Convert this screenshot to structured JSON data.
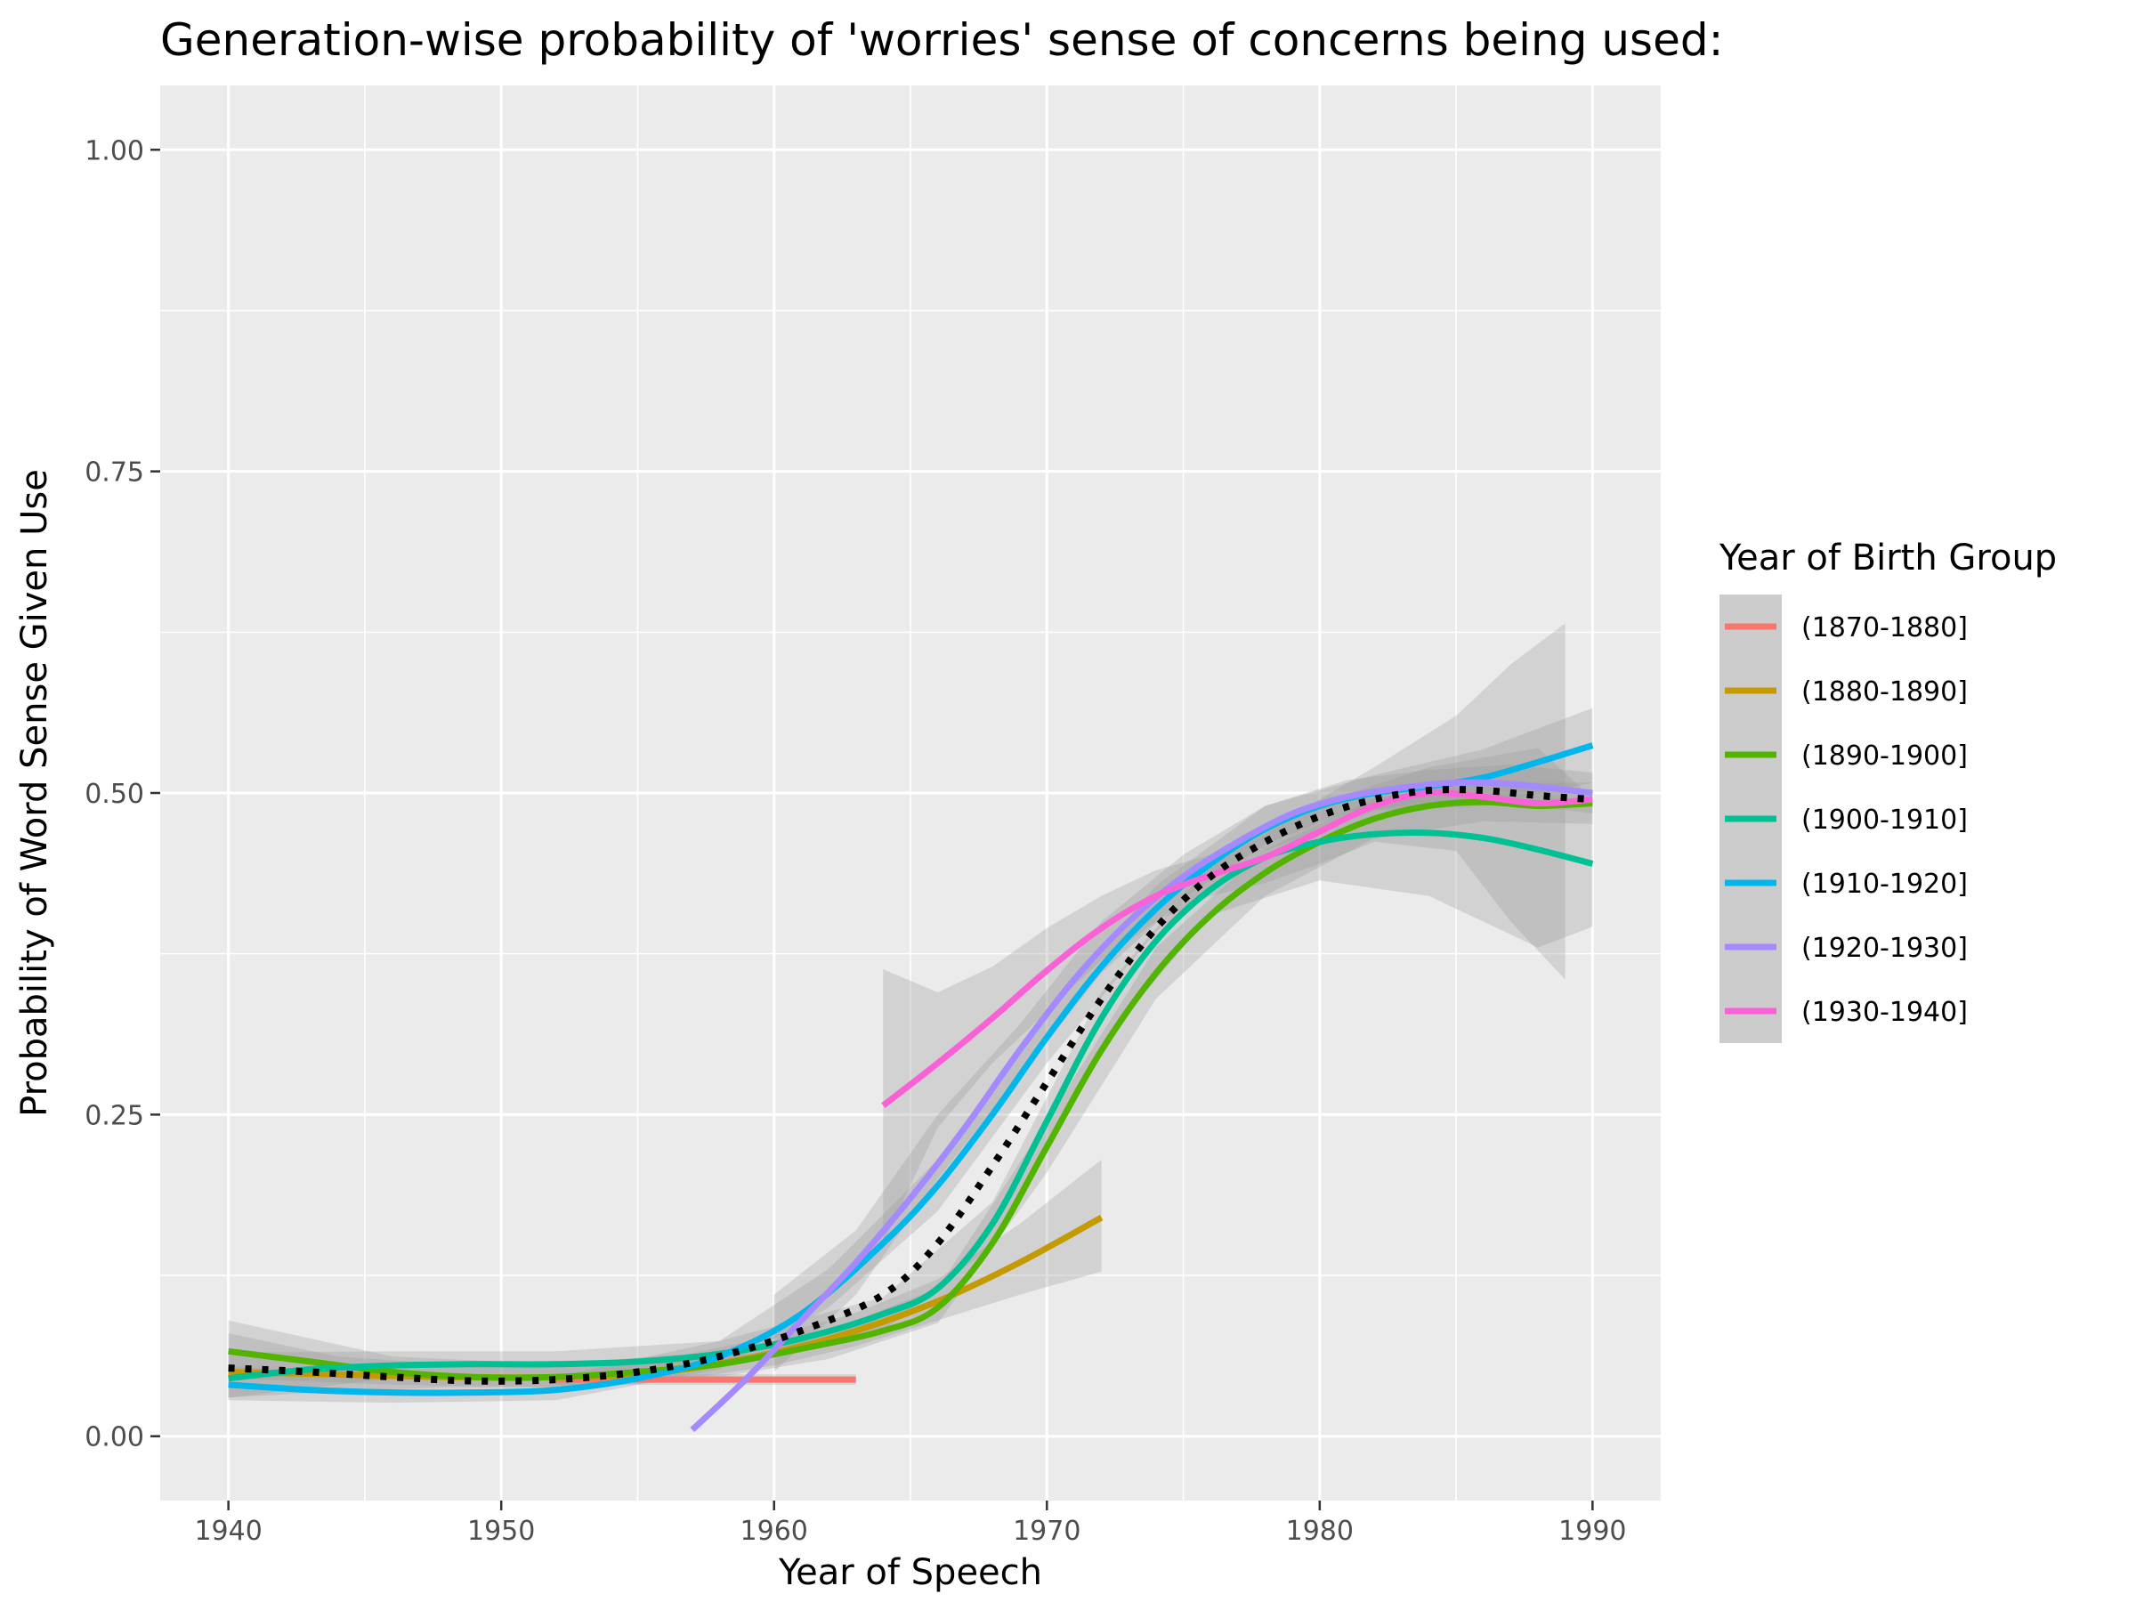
{
  "chart_data": {
    "type": "line",
    "title": "Generation-wise probability of 'worries' sense of concerns being used:",
    "xlabel": "Year of Speech",
    "ylabel": "Probability of Word Sense Given Use",
    "xlim": [
      1937.5,
      1992.5
    ],
    "ylim": [
      -0.05,
      1.05
    ],
    "x_ticks": [
      1940,
      1950,
      1960,
      1970,
      1980,
      1990
    ],
    "x_tick_labels": [
      "1940",
      "1950",
      "1960",
      "1970",
      "1980",
      "1990"
    ],
    "y_ticks": [
      0,
      0.25,
      0.5,
      0.75,
      1.0
    ],
    "y_tick_labels": [
      "0.00",
      "0.25",
      "0.50",
      "0.75",
      "1.00"
    ],
    "grid": true,
    "legend": {
      "title": "Year of Birth Group",
      "position": "right"
    },
    "series": [
      {
        "name": "(1870-1880]",
        "color": "#F8766D",
        "points": [
          [
            1952,
            0.044
          ],
          [
            1955,
            0.044
          ],
          [
            1958,
            0.044
          ],
          [
            1961,
            0.044
          ],
          [
            1963,
            0.044
          ]
        ],
        "ribbon": [
          [
            1952,
            0.04,
            0.048
          ],
          [
            1963,
            0.04,
            0.048
          ]
        ]
      },
      {
        "name": "(1880-1890]",
        "color": "#C49A00",
        "points": [
          [
            1940,
            0.05
          ],
          [
            1944,
            0.048
          ],
          [
            1948,
            0.046
          ],
          [
            1952,
            0.046
          ],
          [
            1956,
            0.05
          ],
          [
            1960,
            0.065
          ],
          [
            1963,
            0.082
          ],
          [
            1966,
            0.105
          ],
          [
            1969,
            0.135
          ],
          [
            1972,
            0.17
          ]
        ],
        "ribbon": [
          [
            1940,
            0.03,
            0.08
          ],
          [
            1944,
            0.035,
            0.062
          ],
          [
            1948,
            0.038,
            0.056
          ],
          [
            1952,
            0.038,
            0.056
          ],
          [
            1956,
            0.042,
            0.06
          ],
          [
            1960,
            0.055,
            0.078
          ],
          [
            1963,
            0.07,
            0.096
          ],
          [
            1966,
            0.09,
            0.122
          ],
          [
            1969,
            0.11,
            0.165
          ],
          [
            1972,
            0.128,
            0.215
          ]
        ]
      },
      {
        "name": "(1890-1900]",
        "color": "#53B400",
        "points": [
          [
            1940,
            0.066
          ],
          [
            1943,
            0.058
          ],
          [
            1946,
            0.05
          ],
          [
            1949,
            0.046
          ],
          [
            1952,
            0.046
          ],
          [
            1955,
            0.05
          ],
          [
            1958,
            0.056
          ],
          [
            1961,
            0.068
          ],
          [
            1964,
            0.082
          ],
          [
            1966,
            0.1
          ],
          [
            1968,
            0.15
          ],
          [
            1970,
            0.225
          ],
          [
            1972,
            0.3
          ],
          [
            1974,
            0.36
          ],
          [
            1976,
            0.405
          ],
          [
            1978,
            0.438
          ],
          [
            1980,
            0.462
          ],
          [
            1982,
            0.48
          ],
          [
            1984,
            0.49
          ],
          [
            1986,
            0.493
          ],
          [
            1988,
            0.49
          ],
          [
            1990,
            0.492
          ]
        ],
        "ribbon": [
          [
            1940,
            0.045,
            0.09
          ],
          [
            1946,
            0.04,
            0.062
          ],
          [
            1952,
            0.038,
            0.056
          ],
          [
            1958,
            0.046,
            0.066
          ],
          [
            1962,
            0.06,
            0.082
          ],
          [
            1966,
            0.088,
            0.115
          ],
          [
            1970,
            0.205,
            0.245
          ],
          [
            1974,
            0.34,
            0.38
          ],
          [
            1978,
            0.42,
            0.456
          ],
          [
            1982,
            0.465,
            0.496
          ],
          [
            1986,
            0.478,
            0.508
          ],
          [
            1990,
            0.476,
            0.508
          ]
        ]
      },
      {
        "name": "(1900-1910]",
        "color": "#00C094",
        "points": [
          [
            1940,
            0.045
          ],
          [
            1943,
            0.052
          ],
          [
            1946,
            0.055
          ],
          [
            1949,
            0.056
          ],
          [
            1952,
            0.056
          ],
          [
            1955,
            0.058
          ],
          [
            1958,
            0.064
          ],
          [
            1961,
            0.076
          ],
          [
            1964,
            0.095
          ],
          [
            1966,
            0.115
          ],
          [
            1968,
            0.165
          ],
          [
            1970,
            0.245
          ],
          [
            1972,
            0.325
          ],
          [
            1974,
            0.385
          ],
          [
            1976,
            0.425
          ],
          [
            1978,
            0.45
          ],
          [
            1980,
            0.462
          ],
          [
            1982,
            0.468
          ],
          [
            1984,
            0.469
          ],
          [
            1986,
            0.465
          ],
          [
            1988,
            0.456
          ],
          [
            1990,
            0.445
          ]
        ],
        "ribbon": [
          [
            1940,
            0.03,
            0.065
          ],
          [
            1946,
            0.045,
            0.066
          ],
          [
            1952,
            0.046,
            0.066
          ],
          [
            1958,
            0.054,
            0.074
          ],
          [
            1964,
            0.082,
            0.108
          ],
          [
            1968,
            0.148,
            0.182
          ],
          [
            1972,
            0.305,
            0.345
          ],
          [
            1976,
            0.405,
            0.445
          ],
          [
            1980,
            0.432,
            0.492
          ],
          [
            1984,
            0.42,
            0.52
          ],
          [
            1988,
            0.38,
            0.535
          ],
          [
            1990,
            0.396,
            0.496
          ]
        ]
      },
      {
        "name": "(1910-1920]",
        "color": "#00B6EB",
        "points": [
          [
            1940,
            0.04
          ],
          [
            1943,
            0.036
          ],
          [
            1946,
            0.034
          ],
          [
            1949,
            0.034
          ],
          [
            1952,
            0.036
          ],
          [
            1955,
            0.045
          ],
          [
            1958,
            0.062
          ],
          [
            1961,
            0.095
          ],
          [
            1964,
            0.15
          ],
          [
            1966,
            0.195
          ],
          [
            1968,
            0.25
          ],
          [
            1970,
            0.31
          ],
          [
            1972,
            0.365
          ],
          [
            1974,
            0.41
          ],
          [
            1976,
            0.445
          ],
          [
            1978,
            0.472
          ],
          [
            1980,
            0.49
          ],
          [
            1982,
            0.5
          ],
          [
            1984,
            0.505
          ],
          [
            1986,
            0.512
          ],
          [
            1988,
            0.524
          ],
          [
            1990,
            0.537
          ]
        ],
        "ribbon": [
          [
            1940,
            0.028,
            0.055
          ],
          [
            1946,
            0.026,
            0.044
          ],
          [
            1952,
            0.028,
            0.046
          ],
          [
            1958,
            0.052,
            0.074
          ],
          [
            1962,
            0.1,
            0.13
          ],
          [
            1966,
            0.175,
            0.215
          ],
          [
            1970,
            0.29,
            0.33
          ],
          [
            1974,
            0.392,
            0.428
          ],
          [
            1978,
            0.455,
            0.49
          ],
          [
            1982,
            0.486,
            0.514
          ],
          [
            1986,
            0.49,
            0.534
          ],
          [
            1990,
            0.508,
            0.566
          ]
        ]
      },
      {
        "name": "(1920-1930]",
        "color": "#A58AFF",
        "points": [
          [
            1957,
            0.005
          ],
          [
            1959,
            0.045
          ],
          [
            1961,
            0.09
          ],
          [
            1963,
            0.135
          ],
          [
            1965,
            0.185
          ],
          [
            1967,
            0.24
          ],
          [
            1969,
            0.3
          ],
          [
            1971,
            0.355
          ],
          [
            1973,
            0.4
          ],
          [
            1975,
            0.435
          ],
          [
            1977,
            0.462
          ],
          [
            1979,
            0.484
          ],
          [
            1981,
            0.497
          ],
          [
            1983,
            0.504
          ],
          [
            1985,
            0.508
          ],
          [
            1987,
            0.507
          ],
          [
            1990,
            0.5
          ]
        ],
        "ribbon": [
          [
            1960,
            0.05,
            0.11
          ],
          [
            1963,
            0.11,
            0.16
          ],
          [
            1966,
            0.2,
            0.25
          ],
          [
            1969,
            0.28,
            0.32
          ],
          [
            1972,
            0.36,
            0.4
          ],
          [
            1975,
            0.418,
            0.452
          ],
          [
            1978,
            0.46,
            0.49
          ],
          [
            1981,
            0.485,
            0.51
          ],
          [
            1984,
            0.492,
            0.518
          ],
          [
            1987,
            0.492,
            0.522
          ],
          [
            1990,
            0.484,
            0.516
          ]
        ]
      },
      {
        "name": "(1930-1940]",
        "color": "#FB61D7",
        "points": [
          [
            1964,
            0.257
          ],
          [
            1966,
            0.29
          ],
          [
            1968,
            0.325
          ],
          [
            1970,
            0.362
          ],
          [
            1972,
            0.395
          ],
          [
            1974,
            0.42
          ],
          [
            1976,
            0.436
          ],
          [
            1978,
            0.45
          ],
          [
            1980,
            0.47
          ],
          [
            1982,
            0.49
          ],
          [
            1984,
            0.5
          ],
          [
            1986,
            0.497
          ],
          [
            1988,
            0.492
          ],
          [
            1990,
            0.495
          ]
        ],
        "ribbon": [
          [
            1964,
            0.15,
            0.363
          ],
          [
            1966,
            0.24,
            0.345
          ],
          [
            1968,
            0.29,
            0.365
          ],
          [
            1970,
            0.33,
            0.395
          ],
          [
            1972,
            0.37,
            0.42
          ],
          [
            1974,
            0.4,
            0.44
          ],
          [
            1976,
            0.42,
            0.452
          ],
          [
            1978,
            0.43,
            0.47
          ],
          [
            1980,
            0.445,
            0.495
          ],
          [
            1982,
            0.462,
            0.52
          ],
          [
            1985,
            0.455,
            0.56
          ],
          [
            1987,
            0.4,
            0.6
          ],
          [
            1989,
            0.355,
            0.632
          ]
        ]
      }
    ],
    "overall": {
      "style": "dotted",
      "color": "#000000",
      "points": [
        [
          1940,
          0.053
        ],
        [
          1943,
          0.05
        ],
        [
          1946,
          0.046
        ],
        [
          1949,
          0.043
        ],
        [
          1952,
          0.044
        ],
        [
          1955,
          0.05
        ],
        [
          1958,
          0.062
        ],
        [
          1961,
          0.082
        ],
        [
          1964,
          0.11
        ],
        [
          1966,
          0.15
        ],
        [
          1968,
          0.21
        ],
        [
          1970,
          0.275
        ],
        [
          1972,
          0.34
        ],
        [
          1974,
          0.395
        ],
        [
          1976,
          0.435
        ],
        [
          1978,
          0.462
        ],
        [
          1980,
          0.482
        ],
        [
          1982,
          0.495
        ],
        [
          1984,
          0.502
        ],
        [
          1986,
          0.502
        ],
        [
          1988,
          0.498
        ],
        [
          1990,
          0.495
        ]
      ]
    }
  }
}
